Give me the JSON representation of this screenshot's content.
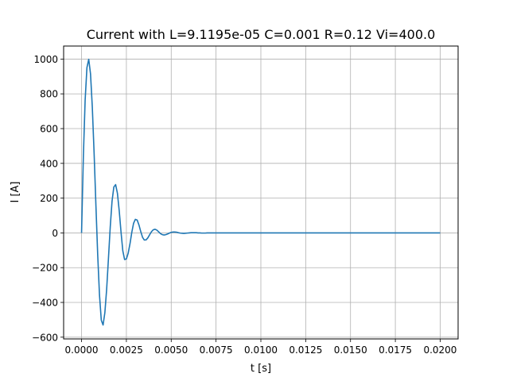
{
  "chart_data": {
    "type": "line",
    "title": "Current with L=9.1195e-05 C=0.001 R=0.12 Vi=400.0",
    "xlabel": "t [s]",
    "ylabel": "I [A]",
    "xlim": [
      -0.001,
      0.021
    ],
    "ylim": [
      -610,
      1075
    ],
    "grid": true,
    "x_ticks": [
      0.0,
      0.0025,
      0.005,
      0.0075,
      0.01,
      0.0125,
      0.015,
      0.0175,
      0.02
    ],
    "x_tick_labels": [
      "0.0000",
      "0.0025",
      "0.0050",
      "0.0075",
      "0.0100",
      "0.0125",
      "0.0150",
      "0.0175",
      "0.0200"
    ],
    "y_ticks": [
      -600,
      -400,
      -200,
      0,
      200,
      400,
      600,
      800,
      1000
    ],
    "y_tick_labels": [
      "−600",
      "−400",
      "−200",
      "0",
      "200",
      "400",
      "600",
      "800",
      "1000"
    ],
    "series": [
      {
        "color": "#1f77b4",
        "x": [
          0.0,
          0.0001,
          0.0002,
          0.0003,
          0.0004,
          0.0005,
          0.0006,
          0.0007,
          0.0008,
          0.0009,
          0.001,
          0.0011,
          0.0012,
          0.0013,
          0.0014,
          0.0015,
          0.0016,
          0.0017,
          0.0018,
          0.0019,
          0.002,
          0.0021,
          0.0022,
          0.0023,
          0.0024,
          0.0025,
          0.0026,
          0.0027,
          0.0028,
          0.0029,
          0.003,
          0.0031,
          0.0032,
          0.0033,
          0.0034,
          0.0035,
          0.0036,
          0.0037,
          0.0038,
          0.0039,
          0.004,
          0.0041,
          0.0042,
          0.0043,
          0.0044,
          0.0045,
          0.0046,
          0.0047,
          0.0048,
          0.0049,
          0.005,
          0.0051,
          0.0052,
          0.0053,
          0.0054,
          0.0055,
          0.0056,
          0.0057,
          0.0058,
          0.0059,
          0.006,
          0.0061,
          0.0062,
          0.0063,
          0.0064,
          0.0065,
          0.0066,
          0.0067,
          0.0068,
          0.0069,
          0.007,
          0.0071,
          0.0072,
          0.0073,
          0.0074,
          0.0075,
          0.0076,
          0.0077,
          0.0078,
          0.0079,
          0.008,
          0.0081,
          0.0082,
          0.0083,
          0.0084,
          0.0085,
          0.0086,
          0.0087,
          0.0088,
          0.0089,
          0.009,
          0.0091,
          0.0092,
          0.0093,
          0.0094,
          0.0095,
          0.0096,
          0.0097,
          0.0098,
          0.0099,
          0.01,
          0.011,
          0.012,
          0.013,
          0.014,
          0.015,
          0.016,
          0.017,
          0.018,
          0.019,
          0.02
        ],
        "y": [
          0,
          437,
          763,
          951,
          999,
          915,
          723,
          458,
          161,
          -125,
          -357,
          -502,
          -530,
          -459,
          -324,
          -147,
          34,
          182,
          264,
          278,
          228,
          128,
          6,
          -103,
          -153,
          -150,
          -117,
          -63,
          2,
          55,
          78,
          74,
          46,
          8,
          -25,
          -41,
          -40,
          -28,
          -10,
          7,
          18,
          21,
          16,
          6,
          -4,
          -10,
          -12,
          -10,
          -6,
          -1,
          3,
          5,
          5,
          4,
          1,
          -1,
          -2,
          -3,
          -2,
          -1,
          0,
          1,
          1,
          1,
          1,
          0,
          0,
          -1,
          -1,
          -1,
          0,
          0,
          0,
          0,
          0,
          0,
          0,
          0,
          0,
          0,
          0,
          0,
          0,
          0,
          0,
          0,
          0,
          0,
          0,
          0,
          0,
          0,
          0,
          0,
          0,
          0,
          0,
          0,
          0,
          0,
          0,
          0,
          0,
          0,
          0,
          0,
          0,
          0,
          0,
          0,
          0
        ]
      }
    ]
  }
}
